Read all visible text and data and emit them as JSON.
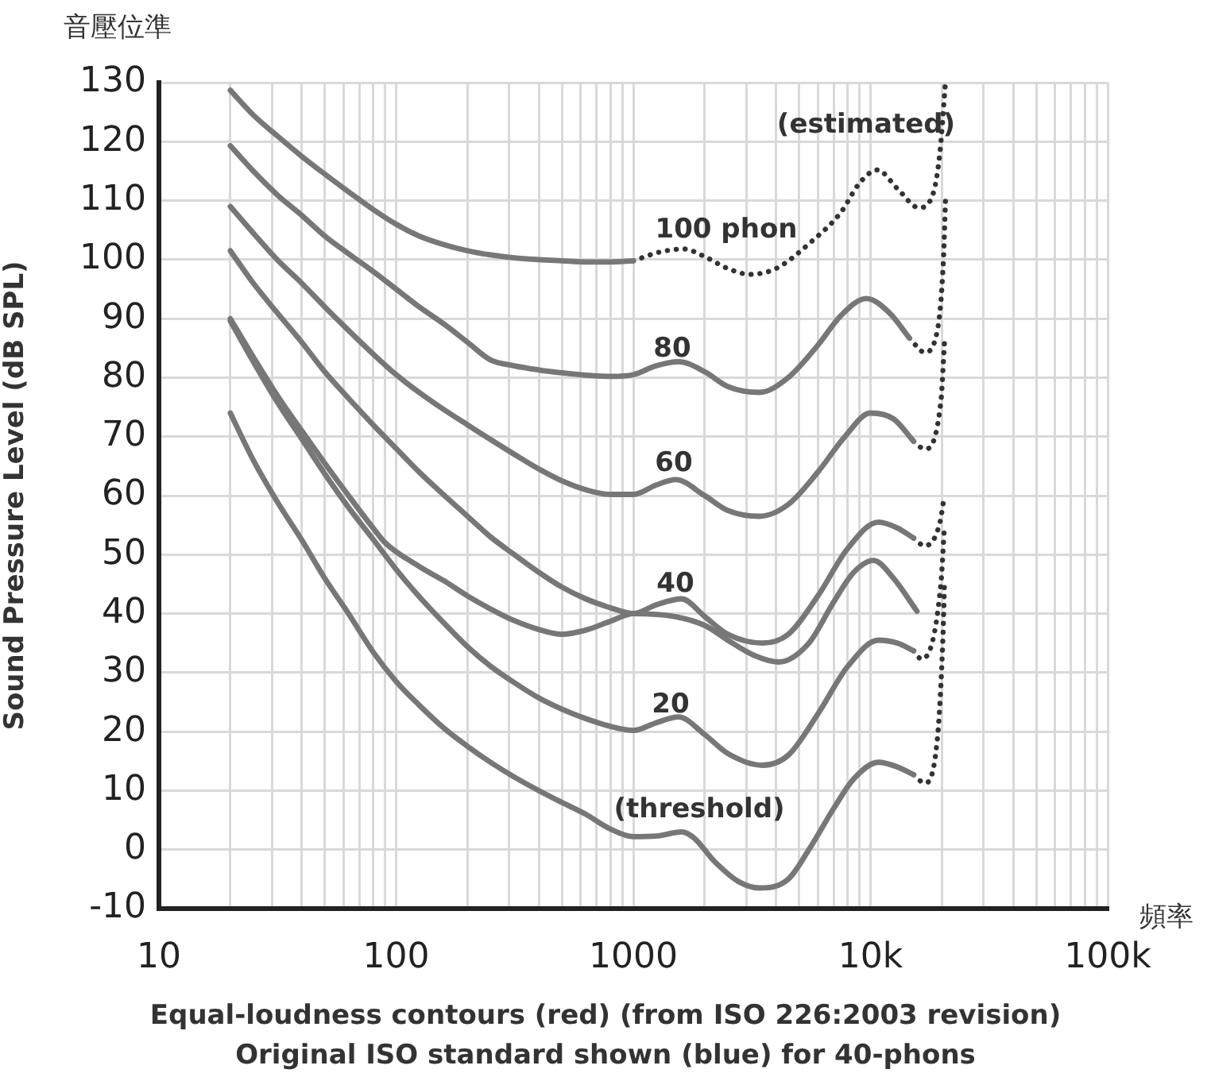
{
  "chart_data": {
    "type": "line",
    "xlabel": "頻率",
    "ylabel": "Sound Pressure Level (dB SPL)",
    "log": "x",
    "grid": true,
    "legend": false,
    "marker": "none",
    "xlim": [
      10,
      100000
    ],
    "ylim": [
      -10,
      130
    ],
    "xticks": [
      10,
      {
        "value": 20,
        "label": null
      },
      {
        "value": 30,
        "label": null
      },
      {
        "value": 40,
        "label": null
      },
      {
        "value": 50,
        "label": null
      },
      {
        "value": 60,
        "label": null
      },
      {
        "value": 70,
        "label": null
      },
      {
        "value": 80,
        "label": null
      },
      {
        "value": 90,
        "label": null
      },
      100,
      {
        "value": 200,
        "label": null
      },
      {
        "value": 300,
        "label": null
      },
      {
        "value": 400,
        "label": null
      },
      {
        "value": 500,
        "label": null
      },
      {
        "value": 600,
        "label": null
      },
      {
        "value": 700,
        "label": null
      },
      {
        "value": 800,
        "label": null
      },
      {
        "value": 900,
        "label": null
      },
      1000,
      {
        "value": 2000,
        "label": null
      },
      {
        "value": 3000,
        "label": null
      },
      {
        "value": 4000,
        "label": null
      },
      {
        "value": 5000,
        "label": null
      },
      {
        "value": 6000,
        "label": null
      },
      {
        "value": 7000,
        "label": null
      },
      {
        "value": 8000,
        "label": null
      },
      {
        "value": 9000,
        "label": null
      },
      {
        "value": 10000,
        "label": "10k"
      },
      {
        "value": 20000,
        "label": null
      },
      {
        "value": 30000,
        "label": null
      },
      {
        "value": 40000,
        "label": null
      },
      {
        "value": 50000,
        "label": null
      },
      {
        "value": 60000,
        "label": null
      },
      {
        "value": 70000,
        "label": null
      },
      {
        "value": 80000,
        "label": null
      },
      {
        "value": 90000,
        "label": null
      },
      {
        "value": 100000,
        "label": "100k"
      }
    ],
    "yticks": [
      -10,
      0,
      10,
      20,
      30,
      40,
      50,
      60,
      70,
      80,
      90,
      100,
      110,
      120,
      130
    ],
    "series": [
      {
        "color": "#777777",
        "line_style": "solid",
        "x": [
          20,
          25,
          31.5,
          40,
          50,
          63,
          80,
          100,
          125,
          160,
          200,
          250,
          315,
          400,
          500,
          630,
          800,
          1000
        ],
        "values": [
          128.7,
          124.5,
          121,
          117.5,
          114.5,
          111.5,
          108.5,
          106,
          104,
          102.5,
          101.5,
          100.8,
          100.3,
          100,
          99.8,
          99.6,
          99.6,
          99.8
        ]
      },
      {
        "color": "#333333",
        "line_style": "dotted",
        "x": [
          1000,
          1300,
          1630,
          2000,
          2500,
          3100,
          4000,
          5580,
          7500,
          9000,
          10700,
          13000,
          16000,
          18300,
          19600,
          20700
        ],
        "values": [
          99.8,
          101.3,
          101.8,
          100.5,
          98.5,
          97.5,
          98.5,
          102.9,
          108,
          113,
          115.2,
          112,
          108.8,
          111,
          118,
          130
        ]
      },
      {
        "color": "#777777",
        "line_style": "solid",
        "x": [
          20,
          25,
          31.5,
          40,
          50,
          63,
          80,
          100,
          125,
          160,
          200,
          250,
          315,
          400,
          500,
          630,
          800,
          1000,
          1250,
          1550,
          2000,
          2500,
          3400,
          4500,
          6000,
          7500,
          9600,
          12000,
          14600
        ],
        "values": [
          119.3,
          115,
          111,
          107.5,
          104,
          101,
          98,
          95,
          92,
          89,
          86,
          83,
          82,
          81.3,
          80.8,
          80.4,
          80.2,
          80.5,
          82,
          82.7,
          81,
          78.5,
          77.5,
          80,
          85.5,
          90.5,
          93.4,
          91,
          86.7
        ]
      },
      {
        "color": "#333333",
        "line_style": "dotted",
        "x": [
          14600,
          16900,
          19200,
          20300,
          20700
        ],
        "values": [
          86.7,
          84.3,
          88.3,
          100,
          110
        ]
      },
      {
        "color": "#777777",
        "line_style": "solid",
        "x": [
          20,
          25,
          31.5,
          40,
          50,
          63,
          80,
          100,
          125,
          160,
          200,
          250,
          315,
          400,
          500,
          630,
          800,
          1000,
          1250,
          1510,
          2000,
          2500,
          3400,
          4500,
          6000,
          7800,
          10000,
          12500,
          15200
        ],
        "values": [
          109,
          104.5,
          100,
          96,
          92,
          88,
          84,
          80.5,
          77.5,
          74.5,
          72,
          69.5,
          67,
          64.5,
          62.5,
          61,
          60.2,
          60.2,
          61.8,
          62.7,
          60,
          57.5,
          56.5,
          58.5,
          64,
          70,
          74,
          73,
          69.2
        ]
      },
      {
        "color": "#333333",
        "line_style": "dotted",
        "x": [
          15200,
          16900,
          19800,
          20500
        ],
        "values": [
          69.2,
          67.9,
          75.9,
          86
        ]
      },
      {
        "color": "#777777",
        "line_style": "solid",
        "x": [
          20,
          25,
          31.5,
          40,
          50,
          63,
          80,
          100,
          125,
          160,
          200,
          250,
          315,
          400,
          500,
          630,
          800,
          1000,
          1250,
          1600,
          2000,
          2500,
          3500,
          4500,
          6000,
          8000,
          10800,
          13000,
          15200
        ],
        "values": [
          101.5,
          96,
          91,
          86,
          81,
          76.5,
          72,
          68,
          64,
          60,
          56.5,
          53,
          50,
          47,
          44.5,
          42.5,
          41,
          40,
          41.5,
          42.5,
          39.5,
          36.5,
          35,
          36.5,
          43,
          51,
          55.5,
          54.5,
          52.8
        ]
      },
      {
        "color": "#333333",
        "line_style": "dotted",
        "x": [
          15200,
          16900,
          19500,
          20500
        ],
        "values": [
          52.8,
          51.5,
          55,
          60
        ]
      },
      {
        "color": "#777777",
        "line_style": "solid",
        "x": [
          20,
          25,
          31.5,
          40,
          50,
          63,
          80,
          90,
          125,
          160,
          200,
          250,
          315,
          400,
          500,
          630,
          800,
          1000,
          1500,
          2000,
          2500,
          3200,
          4100,
          5500,
          7000,
          8500,
          10300,
          12500,
          15700
        ],
        "values": [
          90,
          83.5,
          77,
          71,
          65.5,
          60,
          54.5,
          52,
          48,
          45.5,
          43,
          40.8,
          38.8,
          37.3,
          36.5,
          37.2,
          38.7,
          40,
          39.5,
          38,
          35.5,
          33,
          31.8,
          35,
          42,
          47,
          49,
          46,
          40.4
        ]
      },
      {
        "color": "#777777",
        "line_style": "solid",
        "x": [
          20,
          25,
          31.5,
          40,
          50,
          63,
          80,
          100,
          125,
          160,
          200,
          250,
          315,
          400,
          500,
          630,
          800,
          1000,
          1250,
          1550,
          2000,
          2500,
          3500,
          4500,
          6000,
          8000,
          10800,
          13000,
          15200
        ],
        "values": [
          89.6,
          82.7,
          75.9,
          69.6,
          63.7,
          58,
          52.6,
          47.5,
          42.9,
          38.3,
          34.4,
          31.1,
          28.3,
          25.7,
          23.8,
          22.2,
          20.9,
          20.2,
          21.5,
          22.5,
          19.5,
          16.3,
          14.3,
          16,
          23,
          31,
          35.5,
          35,
          33.7
        ]
      },
      {
        "color": "#333333",
        "line_style": "dotted",
        "x": [
          15200,
          16400,
          19800,
          20500
        ],
        "values": [
          33.7,
          32.3,
          45,
          55
        ]
      },
      {
        "color": "#777777",
        "line_style": "solid",
        "x": [
          20,
          25,
          31.5,
          40,
          50,
          63,
          80,
          100,
          125,
          160,
          200,
          250,
          315,
          400,
          500,
          630,
          800,
          1000,
          1250,
          1600,
          1800,
          2200,
          2800,
          3400,
          4500,
          5500,
          7000,
          8500,
          10800,
          13000,
          15200
        ],
        "values": [
          74,
          66,
          59,
          52.5,
          46,
          40,
          33.5,
          28.5,
          24.5,
          20.5,
          17.5,
          14.8,
          12.3,
          10,
          8,
          6,
          3.5,
          2.2,
          2.3,
          3,
          2,
          -2,
          -5.5,
          -6.5,
          -5,
          0,
          7,
          12,
          14.8,
          14,
          12.7
        ]
      },
      {
        "color": "#333333",
        "line_style": "dotted",
        "x": [
          15200,
          16900,
          19200,
          20200,
          20500
        ],
        "values": [
          12.7,
          11.3,
          19.4,
          36,
          45
        ]
      }
    ],
    "annotations": [
      "音壓位準",
      "Equal-loudness contours (red) (from ISO 226:2003 revision)",
      "Original ISO standard shown (blue) for 40-phons",
      "100 phon",
      "80",
      "60",
      "40",
      "20",
      "(threshold)",
      "(estimated)"
    ]
  }
}
